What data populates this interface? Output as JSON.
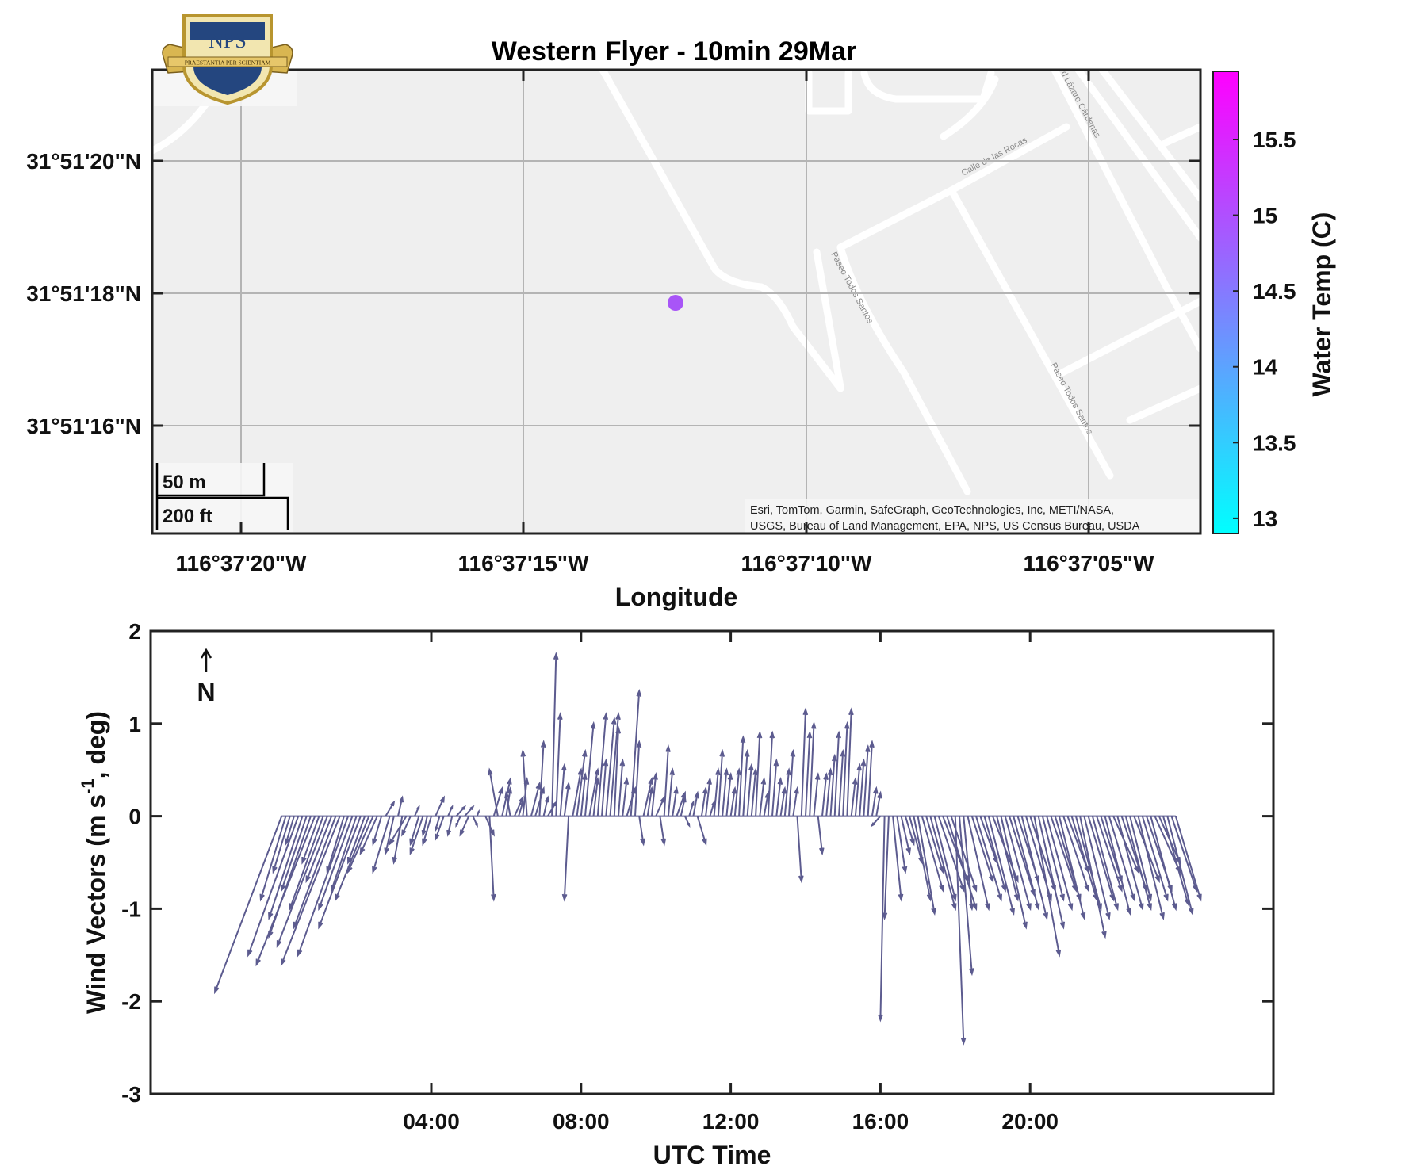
{
  "map": {
    "title": "Western Flyer - 10min 29Mar",
    "xlabel": "Longitude",
    "lat_ticks": [
      "31°51'20\"N",
      "31°51'18\"N",
      "31°51'16\"N"
    ],
    "lon_ticks": [
      "116°37'20\"W",
      "116°37'15\"W",
      "116°37'10\"W",
      "116°37'05\"W"
    ],
    "scale_bar": {
      "metric": "50 m",
      "imperial": "200 ft"
    },
    "attribution": [
      "Esri, TomTom, Garmin, SafeGraph, GeoTechnologies, Inc, METI/NASA,",
      "USGS, Bureau of Land Management, EPA, NPS, US Census Bureau, USDA"
    ],
    "streets": [
      "Calle de las Rocas",
      "Paseo Todos Santos",
      "Paseo Todos Santos",
      "d Lázaro Cárdenas"
    ],
    "marker": {
      "water_temp_c": 14.8,
      "color": "#a855f7"
    },
    "logo_text": "NPS",
    "logo_motto": "PRAESTANTIA PER SCIENTIAM"
  },
  "colorbar": {
    "label": "Water Temp (C)",
    "ticks": [
      "15.5",
      "15",
      "14.5",
      "14",
      "13.5",
      "13"
    ],
    "range": [
      12.9,
      15.95
    ],
    "colormap": [
      "#00ffff",
      "#ff00ff"
    ]
  },
  "chart_data": {
    "type": "quiver",
    "title": "",
    "xlabel": "UTC Time",
    "ylabel": "Wind Vectors (m s^-1, deg)",
    "ylabel_main": "Wind Vectors (m s",
    "ylabel_sup": "-1",
    "ylabel_tail": ", deg)",
    "north_label": "N",
    "x_ticks": [
      "04:00",
      "08:00",
      "12:00",
      "16:00",
      "20:00"
    ],
    "x_tick_hours": [
      4,
      8,
      12,
      16,
      20
    ],
    "xlim_hours": [
      -3.5,
      26.5
    ],
    "y_ticks": [
      "2",
      "1",
      "0",
      "-1",
      "-2",
      "-3"
    ],
    "ylim": [
      -3,
      2
    ],
    "color": "#5c5b8f",
    "interval_min": 10,
    "start_hour": 0.0,
    "vectors_uv": [
      [
        -0.8,
        -1.9
      ],
      [
        -0.3,
        -0.9
      ],
      [
        -0.2,
        -0.6
      ],
      [
        -0.1,
        -0.3
      ],
      [
        -0.6,
        -1.5
      ],
      [
        -0.4,
        -1.1
      ],
      [
        -0.3,
        -0.8
      ],
      [
        -0.5,
        -1.3
      ],
      [
        -0.7,
        -1.6
      ],
      [
        -0.2,
        -0.5
      ],
      [
        -0.4,
        -1.0
      ],
      [
        -0.6,
        -1.4
      ],
      [
        -0.3,
        -0.7
      ],
      [
        -0.5,
        -1.2
      ],
      [
        -0.7,
        -1.6
      ],
      [
        -0.2,
        -0.6
      ],
      [
        -0.6,
        -1.5
      ],
      [
        -0.4,
        -1.0
      ],
      [
        -0.3,
        -0.8
      ],
      [
        -0.5,
        -1.2
      ],
      [
        -0.2,
        -0.5
      ],
      [
        -0.4,
        -0.9
      ],
      [
        -0.3,
        -0.6
      ],
      [
        -0.2,
        -0.4
      ],
      [
        -0.1,
        -0.3
      ],
      [
        0.1,
        0.15
      ],
      [
        -0.2,
        -0.6
      ],
      [
        -0.1,
        -0.4
      ],
      [
        0.05,
        0.2
      ],
      [
        -0.1,
        -0.5
      ],
      [
        -0.2,
        -0.3
      ],
      [
        -0.1,
        -0.2
      ],
      [
        0.05,
        0.1
      ],
      [
        -0.1,
        -0.3
      ],
      [
        -0.15,
        -0.4
      ],
      [
        -0.05,
        -0.2
      ],
      [
        -0.1,
        -0.3
      ],
      [
        0.1,
        0.2
      ],
      [
        -0.05,
        -0.15
      ],
      [
        -0.1,
        -0.25
      ],
      [
        0.05,
        0.1
      ],
      [
        -0.05,
        -0.2
      ],
      [
        0.1,
        0.1
      ],
      [
        -0.05,
        -0.1
      ],
      [
        0.1,
        0.1
      ],
      [
        -0.1,
        -0.2
      ],
      [
        0.05,
        -0.1
      ],
      [
        0.02,
        0.05
      ],
      [
        0.0,
        0.0
      ],
      [
        0.1,
        -0.2
      ],
      [
        0.05,
        -0.9
      ],
      [
        0.1,
        0.3
      ],
      [
        -0.1,
        0.5
      ],
      [
        0.1,
        0.4
      ],
      [
        0.05,
        0.3
      ],
      [
        -0.05,
        0.25
      ],
      [
        0.1,
        0.2
      ],
      [
        0.05,
        0.15
      ],
      [
        0.05,
        0.4
      ],
      [
        -0.05,
        0.7
      ],
      [
        0.1,
        0.35
      ],
      [
        0.1,
        0.3
      ],
      [
        0.05,
        0.8
      ],
      [
        0.05,
        0.2
      ],
      [
        0.1,
        0.15
      ],
      [
        0.05,
        1.75
      ],
      [
        0.05,
        1.1
      ],
      [
        0.05,
        0.55
      ],
      [
        0.05,
        0.35
      ],
      [
        -0.05,
        -0.9
      ],
      [
        0.1,
        0.5
      ],
      [
        0.1,
        0.7
      ],
      [
        0.05,
        0.45
      ],
      [
        0.1,
        1.0
      ],
      [
        0.1,
        0.5
      ],
      [
        0.05,
        0.4
      ],
      [
        0.1,
        1.1
      ],
      [
        0.05,
        0.6
      ],
      [
        0.1,
        1.05
      ],
      [
        0.1,
        1.1
      ],
      [
        0.05,
        0.95
      ],
      [
        0.05,
        0.6
      ],
      [
        0.05,
        0.4
      ],
      [
        0.1,
        0.3
      ],
      [
        0.1,
        1.35
      ],
      [
        0.05,
        0.8
      ],
      [
        0.05,
        -0.3
      ],
      [
        0.1,
        0.4
      ],
      [
        0.05,
        0.3
      ],
      [
        0.05,
        0.45
      ],
      [
        0.1,
        0.2
      ],
      [
        0.05,
        -0.3
      ],
      [
        0.05,
        0.75
      ],
      [
        0.05,
        0.5
      ],
      [
        0.05,
        0.3
      ],
      [
        0.1,
        0.25
      ],
      [
        0.05,
        0.2
      ],
      [
        0.05,
        -0.1
      ],
      [
        0.05,
        0.15
      ],
      [
        0.05,
        0.25
      ],
      [
        0.1,
        -0.3
      ],
      [
        0.05,
        0.3
      ],
      [
        0.05,
        0.4
      ],
      [
        0.05,
        0.15
      ],
      [
        0.05,
        0.5
      ],
      [
        0.05,
        0.7
      ],
      [
        0.05,
        0.5
      ],
      [
        0.05,
        0.45
      ],
      [
        0.05,
        0.3
      ],
      [
        0.05,
        0.5
      ],
      [
        0.05,
        0.85
      ],
      [
        0.05,
        0.7
      ],
      [
        0.05,
        0.55
      ],
      [
        0.05,
        0.5
      ],
      [
        0.05,
        0.9
      ],
      [
        0.05,
        0.4
      ],
      [
        0.05,
        0.25
      ],
      [
        0.05,
        0.9
      ],
      [
        0.05,
        0.6
      ],
      [
        0.05,
        0.4
      ],
      [
        0.05,
        0.3
      ],
      [
        0.05,
        0.5
      ],
      [
        0.05,
        0.7
      ],
      [
        0.05,
        0.3
      ],
      [
        0.05,
        -0.7
      ],
      [
        0.05,
        1.15
      ],
      [
        0.05,
        0.9
      ],
      [
        0.05,
        1.0
      ],
      [
        0.05,
        0.45
      ],
      [
        0.05,
        -0.4
      ],
      [
        0.05,
        0.45
      ],
      [
        0.05,
        0.5
      ],
      [
        0.05,
        0.65
      ],
      [
        0.05,
        0.9
      ],
      [
        0.05,
        0.7
      ],
      [
        0.05,
        1.0
      ],
      [
        0.05,
        1.15
      ],
      [
        0.05,
        0.4
      ],
      [
        0.05,
        0.55
      ],
      [
        0.05,
        0.6
      ],
      [
        0.05,
        0.75
      ],
      [
        0.05,
        0.8
      ],
      [
        0.05,
        0.3
      ],
      [
        0.05,
        0.25
      ],
      [
        -0.1,
        -0.1
      ],
      [
        -0.05,
        -2.2
      ],
      [
        -0.05,
        -1.1
      ],
      [
        0.1,
        -0.9
      ],
      [
        0.1,
        -0.6
      ],
      [
        0.1,
        -0.4
      ],
      [
        0.1,
        -0.3
      ],
      [
        0.15,
        -0.5
      ],
      [
        0.2,
        -0.9
      ],
      [
        0.2,
        -1.05
      ],
      [
        0.25,
        -0.8
      ],
      [
        0.2,
        -0.6
      ],
      [
        0.3,
        -1.0
      ],
      [
        0.25,
        -0.9
      ],
      [
        0.3,
        -0.8
      ],
      [
        0.3,
        -0.7
      ],
      [
        0.35,
        -1.0
      ],
      [
        0.3,
        -0.8
      ],
      [
        0.1,
        -2.45
      ],
      [
        0.15,
        -1.7
      ],
      [
        0.1,
        -1.0
      ],
      [
        0.25,
        -1.0
      ],
      [
        0.25,
        -0.7
      ],
      [
        0.3,
        -0.9
      ],
      [
        0.2,
        -0.5
      ],
      [
        0.25,
        -0.8
      ],
      [
        0.3,
        -1.05
      ],
      [
        0.3,
        -0.7
      ],
      [
        0.25,
        -0.9
      ],
      [
        0.3,
        -1.2
      ],
      [
        0.3,
        -1.0
      ],
      [
        0.3,
        -0.85
      ],
      [
        0.3,
        -1.0
      ],
      [
        0.25,
        -0.7
      ],
      [
        0.3,
        -1.1
      ],
      [
        0.3,
        -0.9
      ],
      [
        0.3,
        -0.8
      ],
      [
        0.3,
        -1.5
      ],
      [
        0.3,
        -1.2
      ],
      [
        0.25,
        -0.9
      ],
      [
        0.3,
        -1.0
      ],
      [
        0.3,
        -0.8
      ],
      [
        0.3,
        -0.9
      ],
      [
        0.3,
        -1.1
      ],
      [
        0.3,
        -0.8
      ],
      [
        0.25,
        -0.6
      ],
      [
        0.3,
        -0.9
      ],
      [
        0.3,
        -1.0
      ],
      [
        0.3,
        -1.3
      ],
      [
        0.3,
        -1.1
      ],
      [
        0.3,
        -0.9
      ],
      [
        0.3,
        -1.0
      ],
      [
        0.3,
        -0.8
      ],
      [
        0.25,
        -0.7
      ],
      [
        0.3,
        -1.05
      ],
      [
        0.3,
        -0.9
      ],
      [
        0.3,
        -0.6
      ],
      [
        0.3,
        -1.0
      ],
      [
        0.3,
        -0.8
      ],
      [
        0.3,
        -1.0
      ],
      [
        0.25,
        -0.9
      ],
      [
        0.3,
        -0.7
      ],
      [
        0.3,
        -1.1
      ],
      [
        0.3,
        -0.9
      ],
      [
        0.3,
        -0.8
      ],
      [
        0.3,
        -1.0
      ],
      [
        0.3,
        -0.6
      ],
      [
        0.25,
        -0.5
      ],
      [
        0.3,
        -0.95
      ],
      [
        0.3,
        -1.05
      ],
      [
        0.3,
        -0.8
      ],
      [
        0.3,
        -0.9
      ]
    ]
  }
}
